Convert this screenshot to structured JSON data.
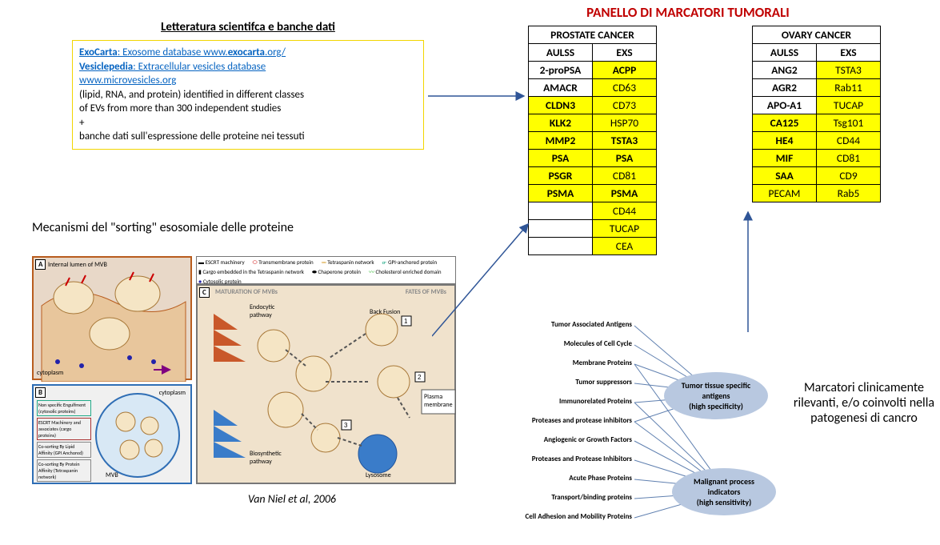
{
  "left": {
    "lit_title": "Letteratura scientifca e banche dati",
    "db": {
      "exocarta_label": "ExoCarta",
      "exocarta_desc": ": Exosome database www.",
      "exocarta_bold": "exocarta",
      "exocarta_tail": ".org/",
      "vesiclepedia_label": "Vesiclepedia",
      "vesiclepedia_desc": ": Extracellular vesicles database",
      "vesiclepedia_url": "www.microvesicles.org",
      "line1": "(lipid, RNA, and protein) identified in different classes",
      "line2": "of EVs from more than 300 independent studies",
      "plus": "+",
      "line3": "banche dati sull'espressione delle proteine nei tessuti"
    },
    "mech_title": "Mecanismi del \"sorting\" esosomiale delle proteine",
    "citation": "Van Niel et al, 2006",
    "fig": {
      "A_inner": "Internal lumen of MVB",
      "A_cyto": "cytoplasm",
      "B_cyto": "cytoplasm",
      "B_mvb": "MVB",
      "C_top_left": "MATURATION OF MVBs",
      "C_top_right": "FATES OF MVBs",
      "C_endo": "Endocytic pathway",
      "C_bio": "Biosynthetic pathway",
      "C_back": "Back Fusion",
      "C_plasma": "Plasma membrane",
      "C_lyso": "Lysosome",
      "legend_items": [
        "ESCRT machinery",
        "Tetraspanin network",
        "Cargo embedded in the Tetraspanin network",
        "Cholesterol enriched domain",
        "Transmembrane protein",
        "GPI-anchored protein",
        "Chaperone protein",
        "Cytosolic protein"
      ]
    }
  },
  "panel_title": "PANELLO DI MARCATORI TUMORALI",
  "prostate": {
    "title": "PROSTATE CANCER",
    "col1": "AULSS",
    "col2": "EXS",
    "rows": [
      {
        "a": "2-proPSA",
        "ah": false,
        "ab": true,
        "e": "ACPP",
        "eh": true,
        "eb": true
      },
      {
        "a": "AMACR",
        "ah": false,
        "ab": true,
        "e": "CD63",
        "eh": true,
        "eb": false
      },
      {
        "a": "CLDN3",
        "ah": true,
        "ab": true,
        "e": "CD73",
        "eh": true,
        "eb": false
      },
      {
        "a": "KLK2",
        "ah": true,
        "ab": true,
        "e": "HSP70",
        "eh": true,
        "eb": false
      },
      {
        "a": "MMP2",
        "ah": true,
        "ab": true,
        "e": "TSTA3",
        "eh": true,
        "eb": true
      },
      {
        "a": "PSA",
        "ah": true,
        "ab": true,
        "e": "PSA",
        "eh": true,
        "eb": true
      },
      {
        "a": "PSGR",
        "ah": true,
        "ab": true,
        "e": "CD81",
        "eh": true,
        "eb": false
      },
      {
        "a": "PSMA",
        "ah": true,
        "ab": true,
        "e": "PSMA",
        "eh": true,
        "eb": true
      },
      {
        "a": "",
        "ah": false,
        "ab": false,
        "e": "CD44",
        "eh": true,
        "eb": false
      },
      {
        "a": "",
        "ah": false,
        "ab": false,
        "e": "TUCAP",
        "eh": true,
        "eb": false
      },
      {
        "a": "",
        "ah": false,
        "ab": false,
        "e": "CEA",
        "eh": true,
        "eb": false
      }
    ]
  },
  "ovary": {
    "title": "OVARY CANCER",
    "col1": "AULSS",
    "col2": "EXS",
    "rows": [
      {
        "a": "ANG2",
        "ah": false,
        "ab": true,
        "e": "TSTA3",
        "eh": true,
        "eb": false
      },
      {
        "a": "AGR2",
        "ah": false,
        "ab": true,
        "e": "Rab11",
        "eh": true,
        "eb": false
      },
      {
        "a": "APO-A1",
        "ah": false,
        "ab": true,
        "e": "TUCAP",
        "eh": true,
        "eb": false
      },
      {
        "a": "CA125",
        "ah": true,
        "ab": true,
        "e": "Tsg101",
        "eh": true,
        "eb": false
      },
      {
        "a": "HE4",
        "ah": true,
        "ab": true,
        "e": "CD44",
        "eh": true,
        "eb": false
      },
      {
        "a": "MIF",
        "ah": true,
        "ab": true,
        "e": "CD81",
        "eh": true,
        "eb": false
      },
      {
        "a": "SAA",
        "ah": true,
        "ab": true,
        "e": "CD9",
        "eh": true,
        "eb": false
      },
      {
        "a": "PECAM",
        "ah": true,
        "ab": false,
        "e": "Rab5",
        "eh": true,
        "eb": false
      }
    ]
  },
  "concept": {
    "labels": [
      "Tumor Associated Antigens",
      "Molecules of Cell Cycle",
      "Membrane Proteins",
      "Tumor suppressors",
      "Immunorelated Proteins",
      "Proteases and protease inhibitors",
      "Angiogenic or Growth Factors",
      "Proteases and Protease Inhibitors",
      "Acute Phase Proteins",
      "Transport/binding proteins",
      "Cell Adhesion and Mobility Proteins"
    ],
    "bubble1_l1": "Tumor tissue specific",
    "bubble1_l2": "antigens",
    "bubble1_l3": "(high specificity)",
    "bubble2_l1": "Malignant process",
    "bubble2_l2": "indicators",
    "bubble2_l3": "(high sensitivity)"
  },
  "right_text": "Marcatori clinicamente rilevanti, e/o coinvolti nella patogenesi di cancro",
  "colors": {
    "highlight": "#ffff00",
    "red": "#c00000",
    "link": "#0563c1",
    "box_border": "#f2d500"
  }
}
